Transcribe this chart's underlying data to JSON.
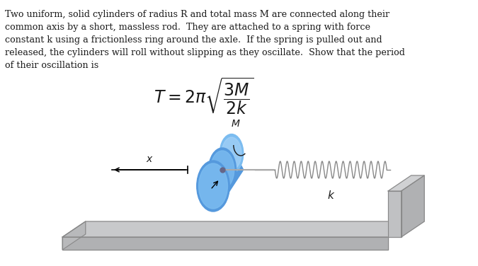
{
  "paragraph_lines": [
    "Two uniform, solid cylinders of radius R and total mass M are connected along their",
    "common axis by a short, massless rod.  They are attached to a spring with force",
    "constant k using a frictionless ring around the axle.  If the spring is pulled out and",
    "released, the cylinders will roll without slipping as they oscillate.  Show that the period",
    "of their oscillation is"
  ],
  "bg_color": "#ffffff",
  "text_color": "#1a1a1a",
  "cyl_body_color": "#5599dd",
  "cyl_face_color": "#7bbcf0",
  "cyl_face_light": "#aad4f8",
  "cyl_shadow": "#3366aa",
  "platform_top": "#c8c9cb",
  "platform_front": "#b0b1b3",
  "platform_left": "#b8b9bb",
  "platform_bottom": "#a0a1a3",
  "wall_front": "#c0c1c3",
  "wall_right": "#b0b1b3",
  "wall_top": "#d0d1d3",
  "spring_color": "#888888",
  "axle_color": "#666688",
  "edge_color": "#888888"
}
